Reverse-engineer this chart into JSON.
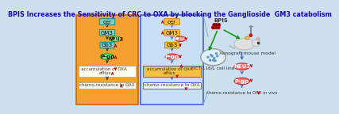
{
  "title": "BPIS Increases the Sensitivity of CRC to OXA by blocking the Ganglioside  GM3 catabolism",
  "title_color": "#1a00cc",
  "title_fontsize": 5.8,
  "bg_color": "#cce0f0",
  "left_panel_bg": "#f5a030",
  "mid_panel_bg": "#c8dff5",
  "left_border": "#cc6600",
  "mid_border": "#4466cc",
  "box_green_fc": "#7ecec4",
  "box_green_ec": "#009090",
  "box_orange_fc": "#f5c040",
  "box_orange_ec": "#cc8800",
  "box_pink_fc": "#f07070",
  "box_pink_ec": "#cc2020",
  "box_pgp_fc": "#90dd90",
  "box_pgp_ec": "#009900",
  "acc_box_fc": "#fffff0",
  "acc_box_ec": "#aaaaaa",
  "acc_box2_fc": "#f5c040",
  "acc_box2_ec": "#4466cc",
  "cr_box_fc": "#fffff0",
  "cr_box_ec": "#aaaaaa",
  "cr_box2_ec": "#4466cc",
  "arrow_red": "#cc0000",
  "arrow_blue": "#4466cc",
  "arrow_black": "#333333",
  "arrow_green": "#009900",
  "text_dark": "#333333",
  "neu3_left_fc": "#b8e8b8",
  "neu3_left_ec": "#009900"
}
